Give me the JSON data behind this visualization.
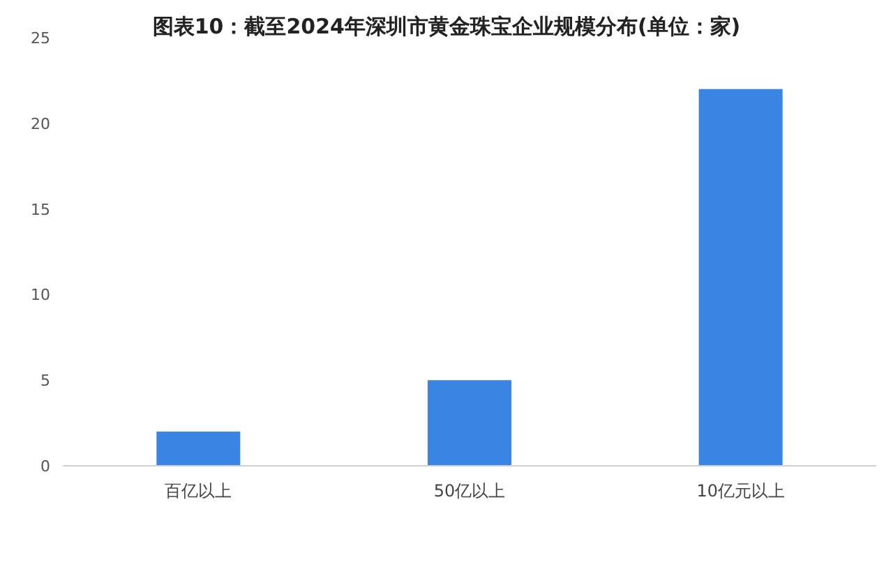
{
  "chart_data": {
    "type": "bar",
    "title": "图表10：截至2024年深圳市黄金珠宝企业规模分布(单位：家)",
    "categories": [
      "百亿以上",
      "50亿以上",
      "10亿元以上"
    ],
    "values": [
      2,
      5,
      22
    ],
    "color": "#3a84e4",
    "ylim": [
      0,
      25
    ],
    "yticks": [
      0,
      5,
      10,
      15,
      20,
      25
    ],
    "grid": false
  }
}
